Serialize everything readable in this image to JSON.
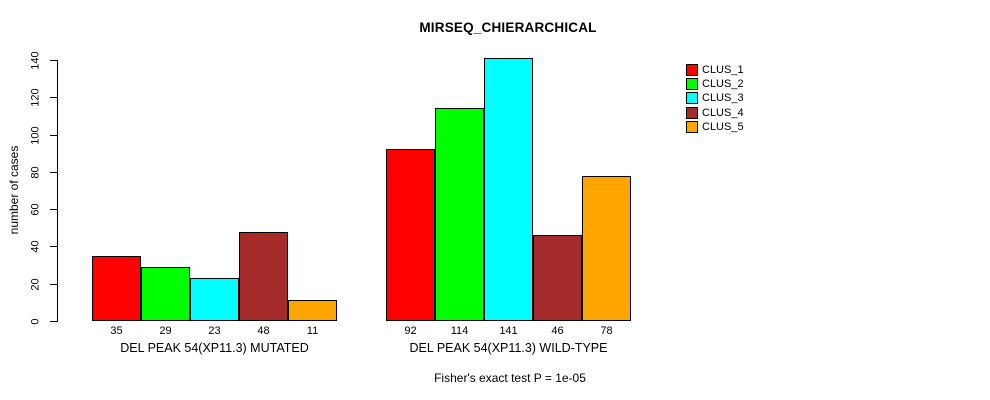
{
  "title": "MIRSEQ_CHIERARCHICAL",
  "y_axis_label": "number of cases",
  "footnote": "Fisher's exact test P = 1e-05",
  "chart_data": {
    "type": "bar",
    "title": "MIRSEQ_CHIERARCHICAL",
    "xlabel": "",
    "ylabel": "number of cases",
    "ylim": [
      0,
      140
    ],
    "yticks": [
      0,
      20,
      40,
      60,
      80,
      100,
      120,
      140
    ],
    "grid": false,
    "legend_position": "top-right",
    "bar_value_labels": true,
    "categories": [
      "DEL PEAK 54(XP11.3) MUTATED",
      "DEL PEAK 54(XP11.3) WILD-TYPE"
    ],
    "series": [
      {
        "name": "CLUS_1",
        "color": "#FF0000",
        "values": [
          35,
          92
        ]
      },
      {
        "name": "CLUS_2",
        "color": "#00FF00",
        "values": [
          29,
          114
        ]
      },
      {
        "name": "CLUS_3",
        "color": "#00FFFF",
        "values": [
          23,
          141
        ]
      },
      {
        "name": "CLUS_4",
        "color": "#A52A2A",
        "values": [
          48,
          46
        ]
      },
      {
        "name": "CLUS_5",
        "color": "#FFA500",
        "values": [
          11,
          78
        ]
      }
    ],
    "annotation": "Fisher's exact test P = 1e-05"
  }
}
